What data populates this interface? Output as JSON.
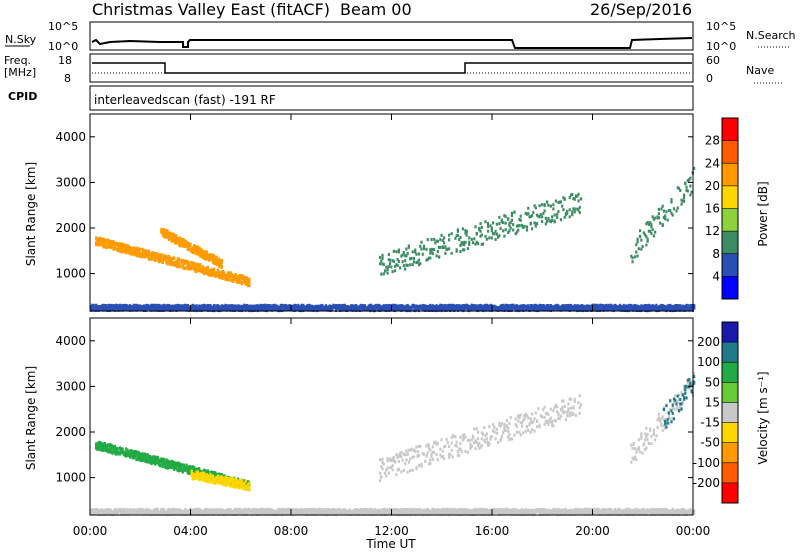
{
  "header": {
    "station": "Christmas Valley East (fitACF)",
    "beam": "Beam 00",
    "date": "26/Sep/2016"
  },
  "noise_panel": {
    "left_label": "N.Sky",
    "right_label": "N.Search",
    "left_ticks": [
      "10^5",
      "10^0"
    ],
    "right_ticks": [
      "10^5",
      "10^0"
    ]
  },
  "freq_panel": {
    "left_label_line1": "Freq.",
    "left_label_line2": "[MHz]",
    "left_ticks": [
      "18",
      "8"
    ],
    "right_label": "Nave",
    "right_ticks": [
      "60",
      "0"
    ]
  },
  "cpid_panel": {
    "label": "CPID",
    "text": "interleavedscan (fast) -191 RF"
  },
  "x_axis": {
    "label": "Time UT",
    "ticks": [
      "00:00",
      "04:00",
      "08:00",
      "12:00",
      "16:00",
      "20:00",
      "00:00"
    ]
  },
  "power_panel": {
    "ylabel": "Slant Range [km]",
    "yticks": [
      "4000",
      "3000",
      "2000",
      "1000"
    ],
    "cbar_label": "Power [dB]",
    "cbar_ticks": [
      "28",
      "24",
      "20",
      "16",
      "12",
      "8",
      "4"
    ],
    "cbar_colors": [
      "#ff0000",
      "#ff5a00",
      "#ff9a00",
      "#ffd700",
      "#8cd23c",
      "#3c8c64",
      "#2a4fb4",
      "#0000ff"
    ]
  },
  "velocity_panel": {
    "ylabel": "Slant Range [km]",
    "yticks": [
      "4000",
      "3000",
      "2000",
      "1000"
    ],
    "cbar_label": "Velocity [m s⁻¹]",
    "cbar_ticks": [
      "200",
      "100",
      "50",
      "15",
      "-15",
      "-50",
      "-100",
      "-200"
    ],
    "cbar_colors": [
      "#1a1aaa",
      "#1f7a8c",
      "#22aa44",
      "#66cc33",
      "#c8c8c8",
      "#ffd700",
      "#ff9a00",
      "#ff5a00",
      "#ff0000"
    ]
  },
  "chart_data": [
    {
      "type": "heatmap",
      "title": "Power",
      "xlabel": "Time UT",
      "ylabel": "Slant Range [km]",
      "xlim_hours": [
        0,
        24
      ],
      "ylim_km": [
        180,
        4500
      ],
      "colorbar": {
        "label": "Power [dB]",
        "range": [
          0,
          30
        ]
      },
      "features": [
        {
          "name": "main_band",
          "t_start": 0.2,
          "t_end": 6.3,
          "range_start_km": 1750,
          "range_end_km": 850,
          "power_db": 20
        },
        {
          "name": "upper_band",
          "t_start": 2.8,
          "t_end": 5.2,
          "range_start_km": 1950,
          "range_end_km": 1250,
          "power_db": 22
        },
        {
          "name": "ground_scatter_strip",
          "t_start": 0.0,
          "t_end": 24.0,
          "range_km": 280,
          "power_db": 6
        },
        {
          "name": "afternoon_patch",
          "t_start": 11.5,
          "t_end": 19.5,
          "range_start_km": 1200,
          "range_end_km": 2600,
          "power_db": 10
        },
        {
          "name": "late_patch",
          "t_start": 21.5,
          "t_end": 24.0,
          "range_start_km": 1500,
          "range_end_km": 3100,
          "power_db": 8
        }
      ]
    },
    {
      "type": "heatmap",
      "title": "Velocity",
      "xlabel": "Time UT",
      "ylabel": "Slant Range [km]",
      "xlim_hours": [
        0,
        24
      ],
      "ylim_km": [
        180,
        4500
      ],
      "colorbar": {
        "label": "Velocity [m s⁻¹]",
        "range": [
          -250,
          250
        ]
      },
      "features": [
        {
          "name": "main_band",
          "t_start": 0.2,
          "t_end": 6.3,
          "range_start_km": 1750,
          "range_end_km": 850,
          "velocity": 60
        },
        {
          "name": "band_tail",
          "t_start": 4.0,
          "t_end": 6.3,
          "range_start_km": 1100,
          "range_end_km": 850,
          "velocity": -40
        },
        {
          "name": "ground_scatter_strip",
          "t_start": 0.0,
          "t_end": 24.0,
          "range_km": 280,
          "velocity": 0
        },
        {
          "name": "afternoon_patch",
          "t_start": 11.5,
          "t_end": 19.5,
          "range_start_km": 1200,
          "range_end_km": 2600,
          "velocity": 0
        },
        {
          "name": "late_patch",
          "t_start": 21.5,
          "t_end": 24.0,
          "range_start_km": 1500,
          "range_end_km": 3100,
          "velocity": -5
        },
        {
          "name": "late_high_patch",
          "t_start": 22.8,
          "t_end": 24.0,
          "range_start_km": 2300,
          "range_end_km": 3100,
          "velocity": 150
        }
      ]
    }
  ]
}
